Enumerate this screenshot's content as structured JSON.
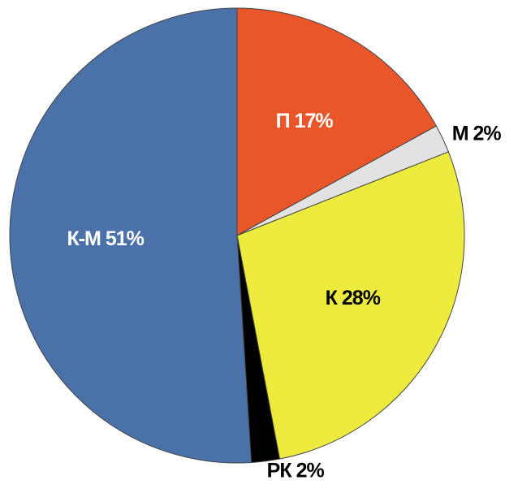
{
  "chart_data": {
    "type": "pie",
    "categories": [
      "П",
      "М",
      "К",
      "РК",
      "К-М"
    ],
    "values": [
      17,
      2,
      28,
      2,
      51
    ],
    "value_labels": [
      "17%",
      "2%",
      "28%",
      "2%",
      "51%"
    ],
    "colors": [
      "#e8562a",
      "#e2e2e2",
      "#eceb3e",
      "#000000",
      "#4a72a9"
    ]
  }
}
